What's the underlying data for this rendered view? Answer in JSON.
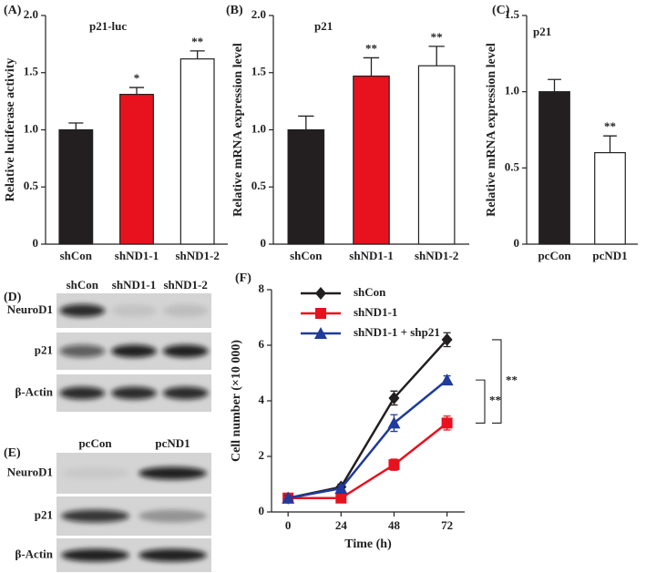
{
  "chart_data": [
    {
      "type": "bar",
      "panel": "(A)",
      "label": "p21-luc",
      "y_label": "Relative luciferase activity",
      "categories": [
        "shCon",
        "shND1-1",
        "shND1-2"
      ],
      "values": [
        1.0,
        1.31,
        1.62
      ],
      "errors": [
        0.06,
        0.06,
        0.07
      ],
      "colors": [
        "#231f20",
        "#e8111e",
        "#ffffff"
      ],
      "annotations": [
        null,
        "*",
        "**"
      ],
      "ylim": [
        0,
        2
      ],
      "yticks": [
        0,
        0.5,
        {
          "value": 1,
          "label": "1.0"
        },
        1.5,
        {
          "value": 2,
          "label": "2.0"
        }
      ]
    },
    {
      "type": "bar",
      "panel": "(B)",
      "label": "p21",
      "y_label": "Relative mRNA expression level",
      "categories": [
        "shCon",
        "shND1-1",
        "shND1-2"
      ],
      "values": [
        1.0,
        1.47,
        1.56
      ],
      "errors": [
        0.12,
        0.16,
        0.17
      ],
      "colors": [
        "#231f20",
        "#e8111e",
        "#ffffff"
      ],
      "annotations": [
        null,
        "**",
        "**"
      ],
      "ylim": [
        0,
        2
      ],
      "yticks": [
        0,
        0.5,
        {
          "value": 1,
          "label": "1.0"
        },
        1.5,
        {
          "value": 2,
          "label": "2.0"
        }
      ]
    },
    {
      "type": "bar",
      "panel": "(C)",
      "label": "p21",
      "y_label": "Relative mRNA expression level",
      "categories": [
        "pcCon",
        "pcND1"
      ],
      "values": [
        1.0,
        0.6
      ],
      "errors": [
        0.08,
        0.11
      ],
      "colors": [
        "#231f20",
        "#ffffff"
      ],
      "annotations": [
        null,
        "**"
      ],
      "ylim": [
        0,
        1.5
      ],
      "yticks": [
        0,
        0.5,
        {
          "value": 1,
          "label": "1.0"
        },
        1.5
      ]
    },
    {
      "type": "line",
      "panel": "(F)",
      "x_label": "Time (h)",
      "y_label": "Cell number (×10 000)",
      "x": [
        0,
        24,
        48,
        72
      ],
      "xlim": [
        -7.5,
        80
      ],
      "xticks": [
        0,
        24,
        48,
        72
      ],
      "ylim": [
        0,
        8
      ],
      "yticks": [
        0,
        2,
        4,
        6,
        8
      ],
      "series": [
        {
          "name": "shCon",
          "color": "#231f20",
          "marker": "diamond",
          "values": [
            0.5,
            0.9,
            4.1,
            6.2
          ],
          "errors": [
            0.1,
            0.1,
            0.25,
            0.25
          ]
        },
        {
          "name": "shND1-1",
          "color": "#e8111e",
          "marker": "square",
          "values": [
            0.5,
            0.5,
            1.7,
            3.2
          ],
          "errors": [
            0.1,
            0.05,
            0.2,
            0.25
          ]
        },
        {
          "name": "shND1-1 + shp21",
          "color": "#1f3b9b",
          "marker": "triangle",
          "values": [
            0.5,
            0.85,
            3.2,
            4.75
          ],
          "errors": [
            0.1,
            0.1,
            0.3,
            0.15
          ]
        }
      ],
      "significance": [
        "**",
        "**"
      ]
    }
  ],
  "blots": [
    {
      "panel": "(D)",
      "lanes": [
        "shCon",
        "shND1-1",
        "shND1-2"
      ],
      "rows": [
        "NeuroD1",
        "p21",
        "β-Actin"
      ]
    },
    {
      "panel": "(E)",
      "lanes": [
        "pcCon",
        "pcND1"
      ],
      "rows": [
        "NeuroD1",
        "p21",
        "β-Actin"
      ]
    }
  ]
}
